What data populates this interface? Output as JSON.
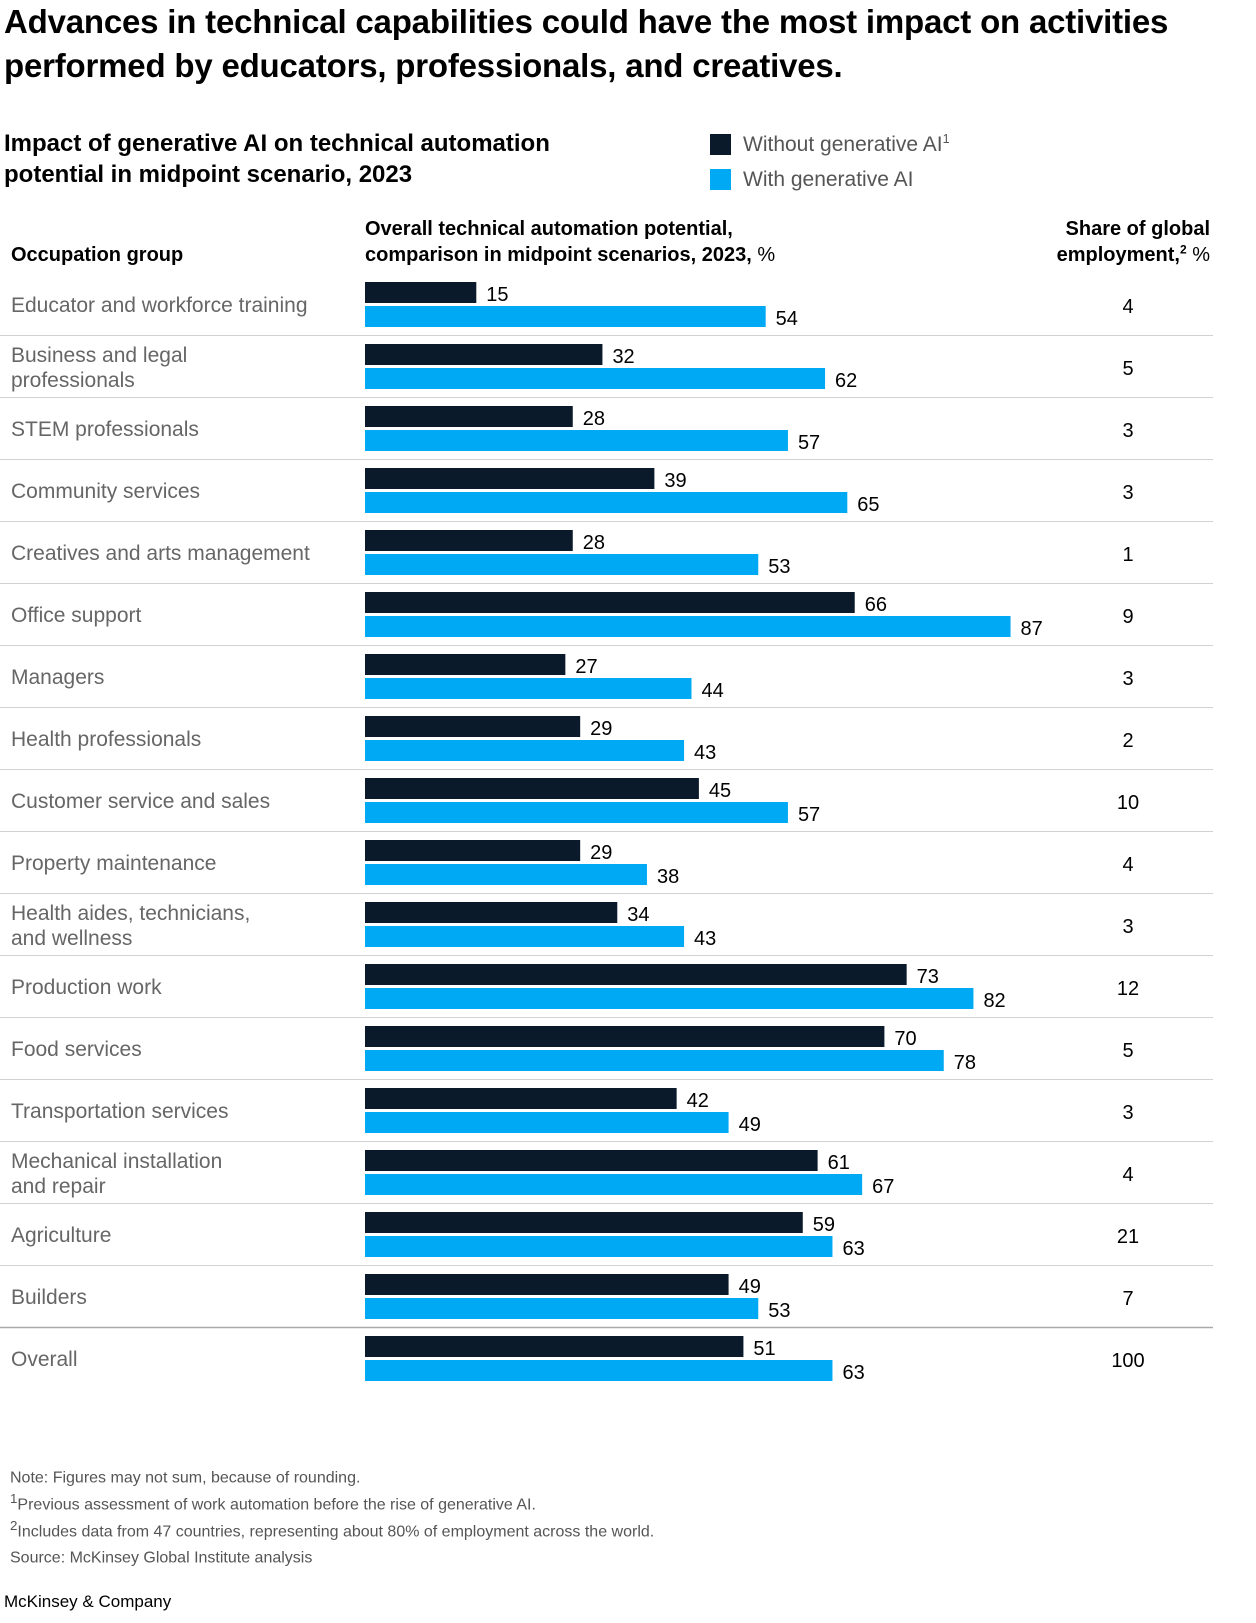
{
  "headline": "Advances in technical capabilities could have the most impact on activities performed by educators, professionals, and creatives.",
  "subtitle": "Impact of generative AI on technical automation potential in midpoint scenario, 2023",
  "legend": [
    {
      "label": "Without generative AI",
      "sup": "1",
      "color": "#0b1a2b"
    },
    {
      "label": "With generative AI",
      "sup": "",
      "color": "#00a9f4"
    }
  ],
  "column_headers": {
    "occupation": "Occupation group",
    "potential_line1": "Overall technical automation potential,",
    "potential_line2": "comparison in midpoint scenarios, 2023,",
    "potential_unit": "%",
    "share_line1": "Share of global",
    "share_line2": "employment,",
    "share_sup": "2",
    "share_unit": "%"
  },
  "chart_data": {
    "type": "bar",
    "orientation": "horizontal",
    "categories": [
      "Educator and workforce training",
      "Business and legal professionals",
      "STEM professionals",
      "Community services",
      "Creatives and arts management",
      "Office support",
      "Managers",
      "Health professionals",
      "Customer service and sales",
      "Property maintenance",
      "Health aides, technicians, and wellness",
      "Production work",
      "Food services",
      "Transportation services",
      "Mechanical installation and repair",
      "Agriculture",
      "Builders",
      "Overall"
    ],
    "category_lines": [
      [
        "Educator and workforce training"
      ],
      [
        "Business and legal",
        "professionals"
      ],
      [
        "STEM professionals"
      ],
      [
        "Community services"
      ],
      [
        "Creatives and arts management"
      ],
      [
        "Office support"
      ],
      [
        "Managers"
      ],
      [
        "Health professionals"
      ],
      [
        "Customer service and sales"
      ],
      [
        "Property maintenance"
      ],
      [
        "Health aides, technicians,",
        "and wellness"
      ],
      [
        "Production work"
      ],
      [
        "Food services"
      ],
      [
        "Transportation services"
      ],
      [
        "Mechanical installation",
        "and repair"
      ],
      [
        "Agriculture"
      ],
      [
        "Builders"
      ],
      [
        "Overall"
      ]
    ],
    "series": [
      {
        "name": "Without generative AI",
        "color": "#0b1a2b",
        "values": [
          15,
          32,
          28,
          39,
          28,
          66,
          27,
          29,
          45,
          29,
          34,
          73,
          70,
          42,
          61,
          59,
          49,
          51
        ]
      },
      {
        "name": "With generative AI",
        "color": "#00a9f4",
        "values": [
          54,
          62,
          57,
          65,
          53,
          87,
          44,
          43,
          57,
          38,
          43,
          82,
          78,
          49,
          67,
          63,
          53,
          63
        ]
      }
    ],
    "share_of_global_employment": [
      4,
      5,
      3,
      3,
      1,
      9,
      3,
      2,
      10,
      4,
      3,
      12,
      5,
      3,
      4,
      21,
      7,
      100
    ],
    "xlim": [
      0,
      100
    ],
    "grid": false
  },
  "footnotes": [
    {
      "sup": "",
      "text": "Note: Figures may not sum, because of rounding."
    },
    {
      "sup": "1",
      "text": "Previous assessment of work automation before the rise of generative AI."
    },
    {
      "sup": "2",
      "text": "Includes data from 47 countries, representing about 80% of employment across the world."
    },
    {
      "sup": "",
      "text": "Source: McKinsey Global Institute analysis"
    }
  ],
  "brand": "McKinsey & Company"
}
